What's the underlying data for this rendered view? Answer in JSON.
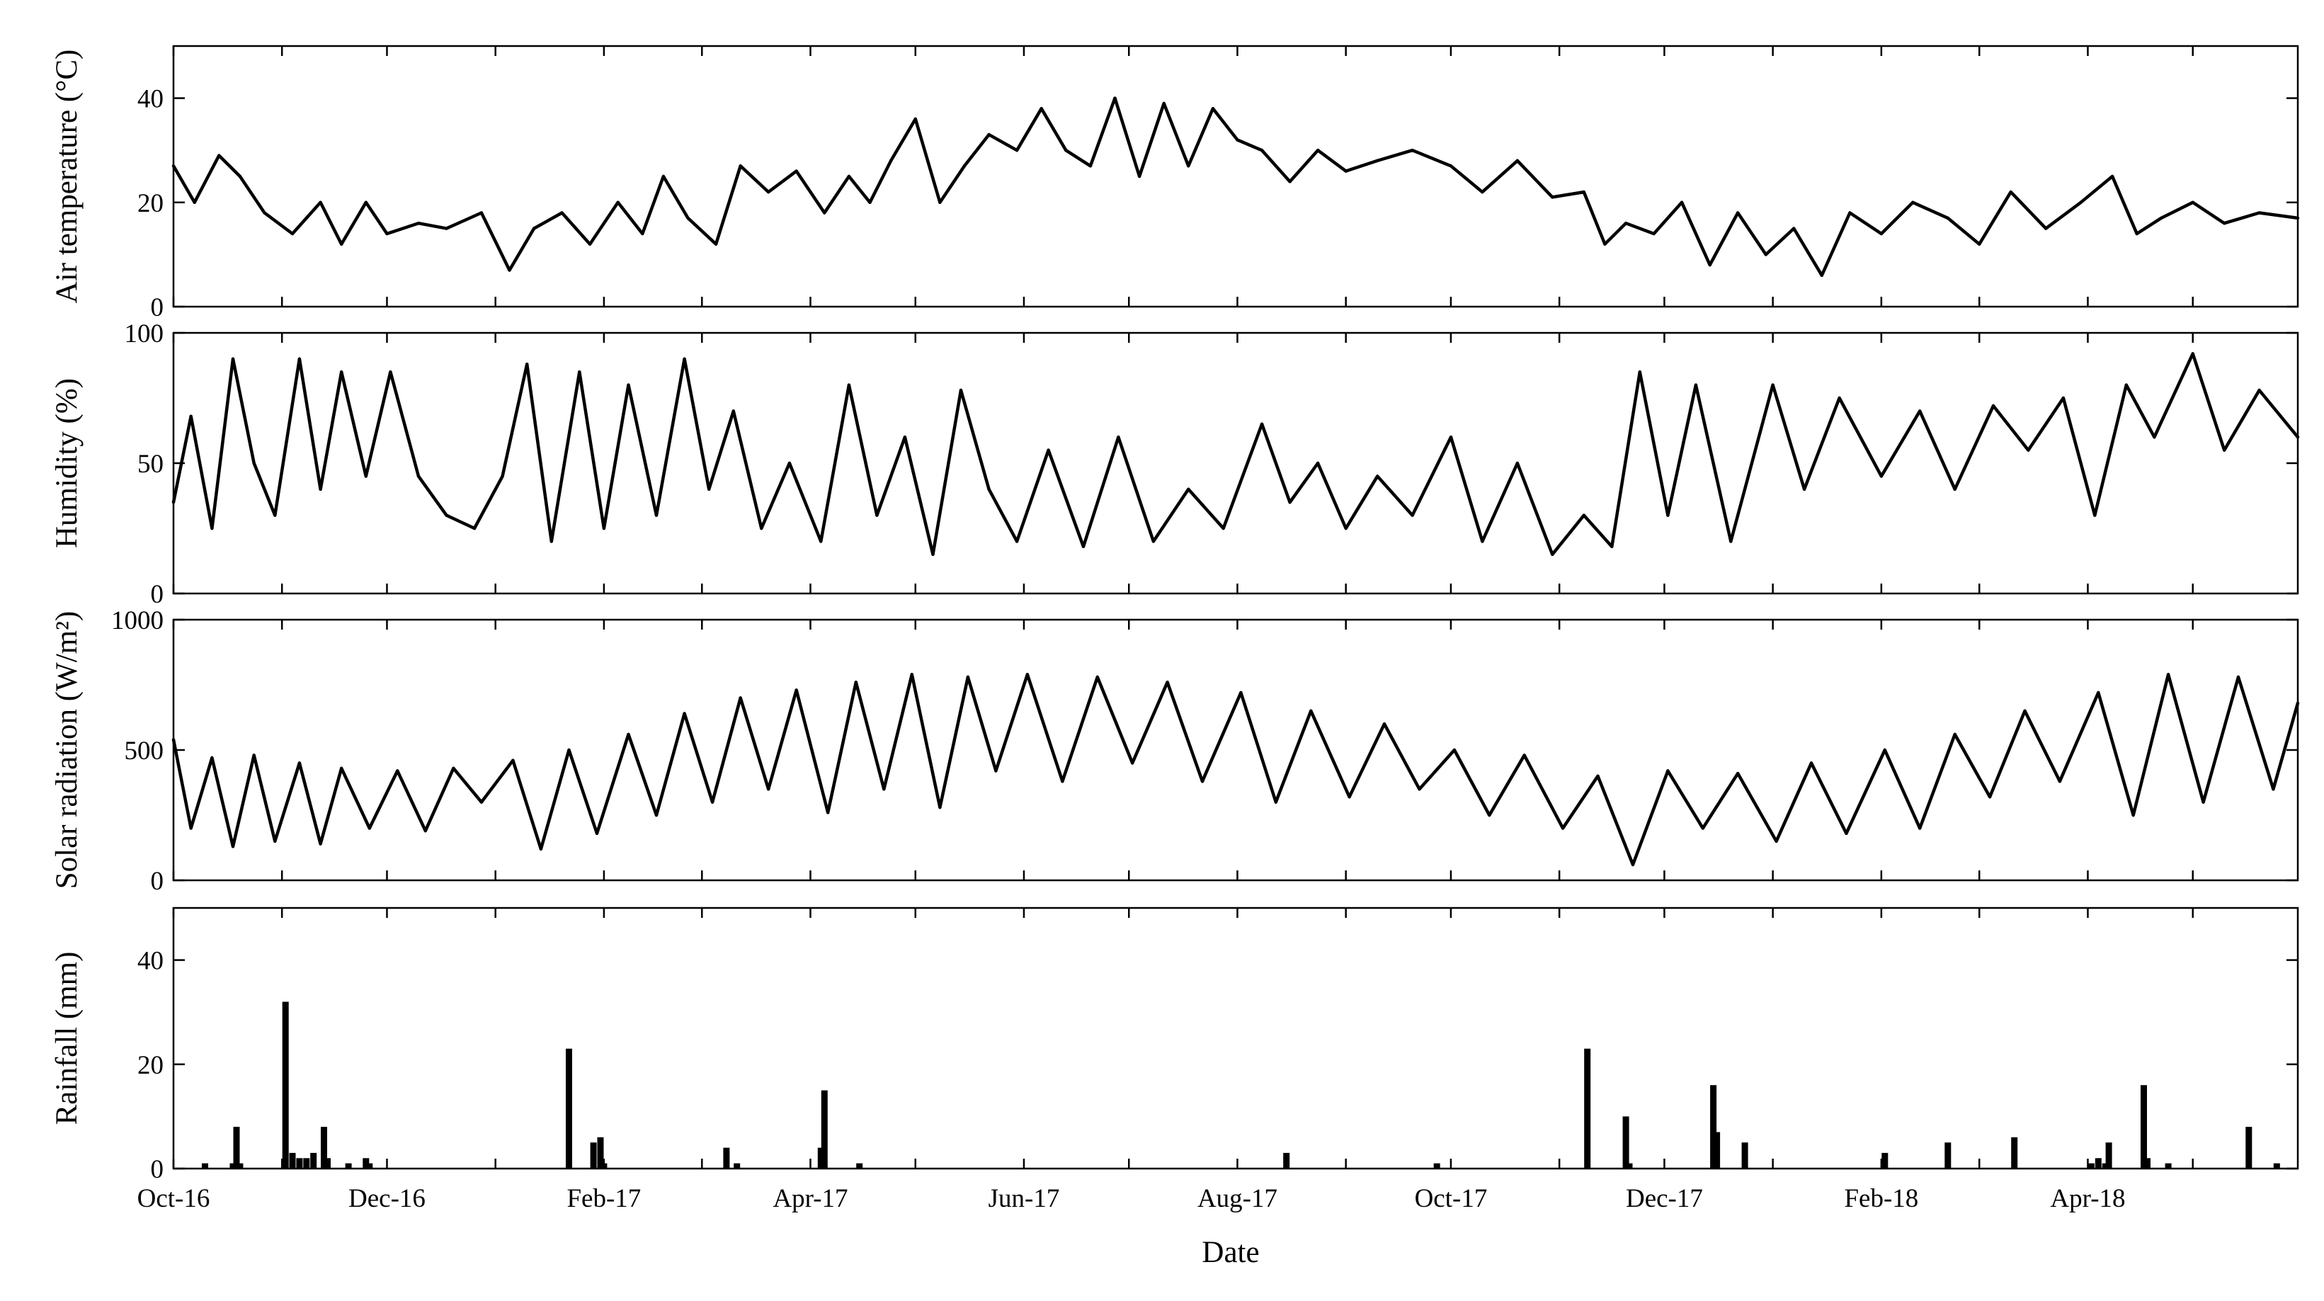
{
  "figure": {
    "x_axis_title": "Date",
    "x_tick_labels": [
      "Oct-16",
      "Dec-16",
      "Feb-17",
      "Apr-17",
      "Jun-17",
      "Aug-17",
      "Oct-17",
      "Dec-17",
      "Feb-18",
      "Apr-18"
    ]
  },
  "chart_data": [
    {
      "type": "line",
      "ylabel": "Air temperature (°C)",
      "ylim": [
        0,
        50
      ],
      "yticks": [
        0,
        20,
        40
      ],
      "x_range": [
        "2016-10-01",
        "2018-05-31"
      ],
      "grid": false,
      "series": [
        {
          "x": [
            "2016-10-01",
            "2016-10-07",
            "2016-10-14",
            "2016-10-20",
            "2016-10-27",
            "2016-11-04",
            "2016-11-12",
            "2016-11-18",
            "2016-11-25",
            "2016-12-01",
            "2016-12-10",
            "2016-12-18",
            "2016-12-28",
            "2017-01-05",
            "2017-01-12",
            "2017-01-20",
            "2017-01-28",
            "2017-02-05",
            "2017-02-12",
            "2017-02-18",
            "2017-02-25",
            "2017-03-05",
            "2017-03-12",
            "2017-03-20",
            "2017-03-28",
            "2017-04-05",
            "2017-04-12",
            "2017-04-18",
            "2017-04-24",
            "2017-05-01",
            "2017-05-08",
            "2017-05-15",
            "2017-05-22",
            "2017-05-30",
            "2017-06-06",
            "2017-06-13",
            "2017-06-20",
            "2017-06-27",
            "2017-07-04",
            "2017-07-11",
            "2017-07-18",
            "2017-07-25",
            "2017-08-01",
            "2017-08-08",
            "2017-08-16",
            "2017-08-24",
            "2017-09-01",
            "2017-09-10",
            "2017-09-20",
            "2017-10-01",
            "2017-10-10",
            "2017-10-20",
            "2017-10-30",
            "2017-11-08",
            "2017-11-14",
            "2017-11-20",
            "2017-11-28",
            "2017-12-06",
            "2017-12-14",
            "2017-12-22",
            "2017-12-30",
            "2018-01-07",
            "2018-01-15",
            "2018-01-23",
            "2018-02-01",
            "2018-02-10",
            "2018-02-20",
            "2018-03-01",
            "2018-03-10",
            "2018-03-20",
            "2018-03-30",
            "2018-04-08",
            "2018-04-15",
            "2018-04-22",
            "2018-05-01",
            "2018-05-10",
            "2018-05-20",
            "2018-05-31"
          ],
          "y": [
            27,
            20,
            29,
            25,
            18,
            14,
            20,
            12,
            20,
            14,
            16,
            15,
            18,
            7,
            15,
            18,
            12,
            20,
            14,
            25,
            17,
            12,
            27,
            22,
            26,
            18,
            25,
            20,
            28,
            36,
            20,
            27,
            33,
            30,
            38,
            30,
            27,
            40,
            25,
            39,
            27,
            38,
            32,
            30,
            24,
            30,
            26,
            28,
            30,
            27,
            22,
            28,
            21,
            22,
            12,
            16,
            14,
            20,
            8,
            18,
            10,
            15,
            6,
            18,
            14,
            20,
            17,
            12,
            22,
            15,
            20,
            25,
            14,
            17,
            20,
            16,
            18,
            17
          ]
        }
      ]
    },
    {
      "type": "line",
      "ylabel": "Humidity (%)",
      "ylim": [
        0,
        100
      ],
      "yticks": [
        0,
        50,
        100
      ],
      "x_range": [
        "2016-10-01",
        "2018-05-31"
      ],
      "grid": false,
      "series": [
        {
          "x": [
            "2016-10-01",
            "2016-10-06",
            "2016-10-12",
            "2016-10-18",
            "2016-10-24",
            "2016-10-30",
            "2016-11-06",
            "2016-11-12",
            "2016-11-18",
            "2016-11-25",
            "2016-12-02",
            "2016-12-10",
            "2016-12-18",
            "2016-12-26",
            "2017-01-03",
            "2017-01-10",
            "2017-01-17",
            "2017-01-25",
            "2017-02-01",
            "2017-02-08",
            "2017-02-16",
            "2017-02-24",
            "2017-03-03",
            "2017-03-10",
            "2017-03-18",
            "2017-03-26",
            "2017-04-04",
            "2017-04-12",
            "2017-04-20",
            "2017-04-28",
            "2017-05-06",
            "2017-05-14",
            "2017-05-22",
            "2017-05-30",
            "2017-06-08",
            "2017-06-18",
            "2017-06-28",
            "2017-07-08",
            "2017-07-18",
            "2017-07-28",
            "2017-08-08",
            "2017-08-16",
            "2017-08-24",
            "2017-09-01",
            "2017-09-10",
            "2017-09-20",
            "2017-10-01",
            "2017-10-10",
            "2017-10-20",
            "2017-10-30",
            "2017-11-08",
            "2017-11-16",
            "2017-11-24",
            "2017-12-02",
            "2017-12-10",
            "2017-12-20",
            "2018-01-01",
            "2018-01-10",
            "2018-01-20",
            "2018-02-01",
            "2018-02-12",
            "2018-02-22",
            "2018-03-05",
            "2018-03-15",
            "2018-03-25",
            "2018-04-03",
            "2018-04-12",
            "2018-04-20",
            "2018-05-01",
            "2018-05-10",
            "2018-05-20",
            "2018-05-31"
          ],
          "y": [
            35,
            68,
            25,
            90,
            50,
            30,
            90,
            40,
            85,
            45,
            85,
            45,
            30,
            25,
            45,
            88,
            20,
            85,
            25,
            80,
            30,
            90,
            40,
            70,
            25,
            50,
            20,
            80,
            30,
            60,
            15,
            78,
            40,
            20,
            55,
            18,
            60,
            20,
            40,
            25,
            65,
            35,
            50,
            25,
            45,
            30,
            60,
            20,
            50,
            15,
            30,
            18,
            85,
            30,
            80,
            20,
            80,
            40,
            75,
            45,
            70,
            40,
            72,
            55,
            75,
            30,
            80,
            60,
            92,
            55,
            78,
            60
          ]
        }
      ]
    },
    {
      "type": "line",
      "ylabel": "Solar radiation (W/m²)",
      "ylim": [
        0,
        1000
      ],
      "yticks": [
        0,
        500,
        1000
      ],
      "x_range": [
        "2016-10-01",
        "2018-05-31"
      ],
      "grid": false,
      "series": [
        {
          "x": [
            "2016-10-01",
            "2016-10-06",
            "2016-10-12",
            "2016-10-18",
            "2016-10-24",
            "2016-10-30",
            "2016-11-06",
            "2016-11-12",
            "2016-11-18",
            "2016-11-26",
            "2016-12-04",
            "2016-12-12",
            "2016-12-20",
            "2016-12-28",
            "2017-01-06",
            "2017-01-14",
            "2017-01-22",
            "2017-01-30",
            "2017-02-08",
            "2017-02-16",
            "2017-02-24",
            "2017-03-04",
            "2017-03-12",
            "2017-03-20",
            "2017-03-28",
            "2017-04-06",
            "2017-04-14",
            "2017-04-22",
            "2017-04-30",
            "2017-05-08",
            "2017-05-16",
            "2017-05-24",
            "2017-06-02",
            "2017-06-12",
            "2017-06-22",
            "2017-07-02",
            "2017-07-12",
            "2017-07-22",
            "2017-08-02",
            "2017-08-12",
            "2017-08-22",
            "2017-09-02",
            "2017-09-12",
            "2017-09-22",
            "2017-10-02",
            "2017-10-12",
            "2017-10-22",
            "2017-11-02",
            "2017-11-12",
            "2017-11-22",
            "2017-12-02",
            "2017-12-12",
            "2017-12-22",
            "2018-01-02",
            "2018-01-12",
            "2018-01-22",
            "2018-02-02",
            "2018-02-12",
            "2018-02-22",
            "2018-03-04",
            "2018-03-14",
            "2018-03-24",
            "2018-04-04",
            "2018-04-14",
            "2018-04-24",
            "2018-05-04",
            "2018-05-14",
            "2018-05-24",
            "2018-05-31"
          ],
          "y": [
            540,
            200,
            470,
            130,
            480,
            150,
            450,
            140,
            430,
            200,
            420,
            190,
            430,
            300,
            460,
            120,
            500,
            180,
            560,
            250,
            640,
            300,
            700,
            350,
            730,
            260,
            760,
            350,
            790,
            280,
            780,
            420,
            790,
            380,
            780,
            450,
            760,
            380,
            720,
            300,
            650,
            320,
            600,
            350,
            500,
            250,
            480,
            200,
            400,
            60,
            420,
            200,
            410,
            150,
            450,
            180,
            500,
            200,
            560,
            320,
            650,
            380,
            720,
            250,
            790,
            300,
            780,
            350,
            680
          ]
        }
      ]
    },
    {
      "type": "bar",
      "ylabel": "Rainfall (mm)",
      "ylim": [
        0,
        50
      ],
      "yticks": [
        0,
        20,
        40
      ],
      "x_range": [
        "2016-10-01",
        "2018-05-31"
      ],
      "grid": false,
      "x": [
        "2016-10-10",
        "2016-10-18",
        "2016-10-19",
        "2016-10-20",
        "2016-11-02",
        "2016-11-04",
        "2016-11-06",
        "2016-11-08",
        "2016-11-10",
        "2016-11-13",
        "2016-11-14",
        "2016-11-20",
        "2016-11-25",
        "2016-11-26",
        "2017-01-22",
        "2017-01-29",
        "2017-01-31",
        "2017-02-01",
        "2017-03-08",
        "2017-03-11",
        "2017-04-04",
        "2017-04-05",
        "2017-04-15",
        "2017-08-15",
        "2017-09-27",
        "2017-11-09",
        "2017-11-20",
        "2017-11-21",
        "2017-12-15",
        "2017-12-16",
        "2017-12-24",
        "2018-02-02",
        "2018-02-20",
        "2018-03-11",
        "2018-04-02",
        "2018-04-04",
        "2018-04-06",
        "2018-04-07",
        "2018-04-17",
        "2018-04-18",
        "2018-04-24",
        "2018-05-17",
        "2018-05-25"
      ],
      "values": [
        1,
        1,
        8,
        1,
        32,
        3,
        2,
        2,
        3,
        8,
        2,
        1,
        2,
        1,
        23,
        5,
        6,
        1,
        4,
        1,
        4,
        15,
        1,
        3,
        1,
        23,
        10,
        1,
        16,
        7,
        5,
        3,
        5,
        6,
        1,
        2,
        1,
        5,
        16,
        2,
        1,
        8,
        1
      ]
    }
  ]
}
